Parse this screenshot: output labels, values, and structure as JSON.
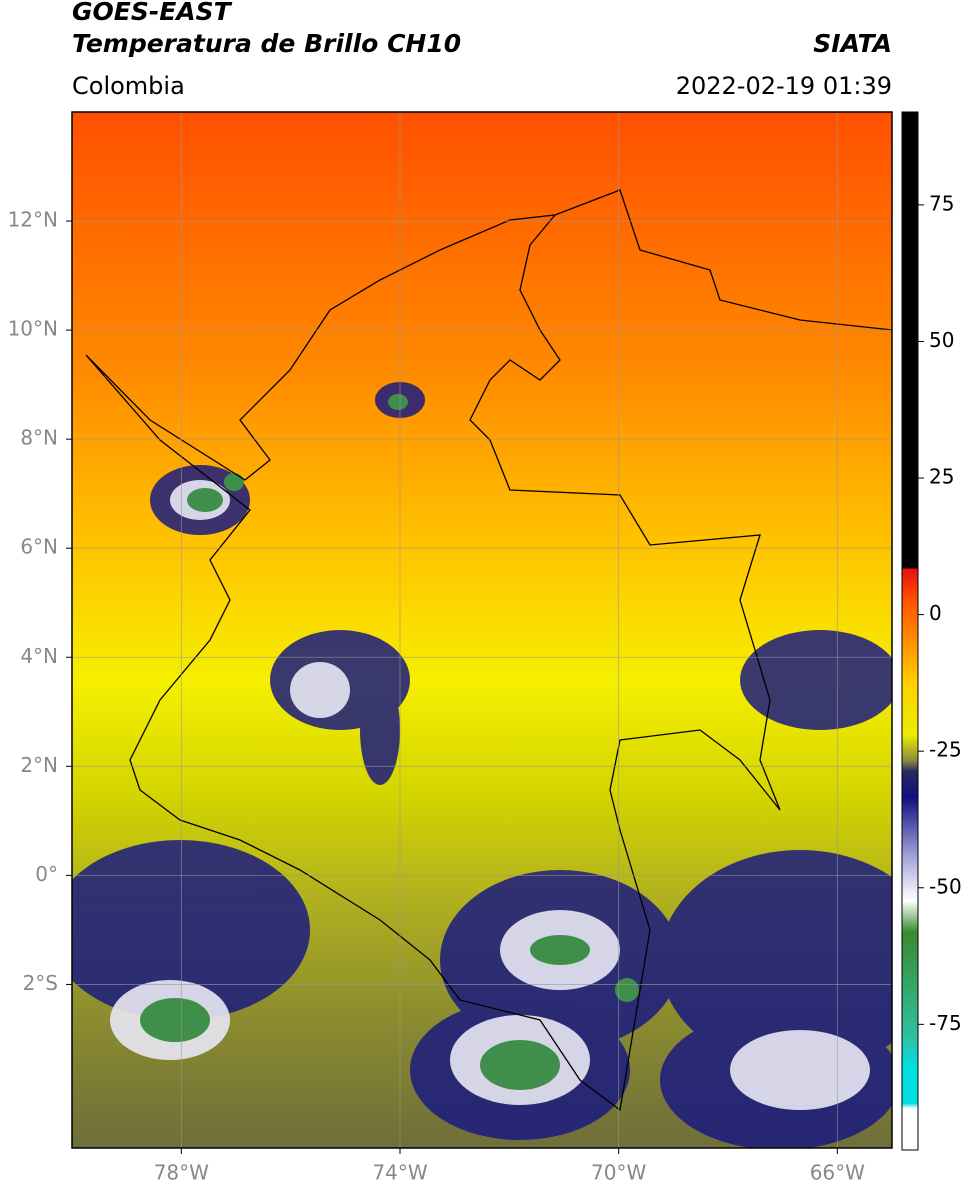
{
  "header": {
    "satellite": "GOES-EAST",
    "product": "Temperatura de Brillo CH10",
    "agency": "SIATA",
    "region": "Colombia",
    "datetime": "2022-02-19 01:39"
  },
  "map": {
    "xlim": [
      -80,
      -65
    ],
    "ylim": [
      -5,
      14
    ],
    "xticks": [
      {
        "value": -78,
        "label": "78°W"
      },
      {
        "value": -74,
        "label": "74°W"
      },
      {
        "value": -70,
        "label": "70°W"
      },
      {
        "value": -66,
        "label": "66°W"
      }
    ],
    "yticks": [
      {
        "value": 12,
        "label": "12°N"
      },
      {
        "value": 10,
        "label": "10°N"
      },
      {
        "value": 8,
        "label": "8°N"
      },
      {
        "value": 6,
        "label": "6°N"
      },
      {
        "value": 4,
        "label": "4°N"
      },
      {
        "value": 2,
        "label": "2°N"
      },
      {
        "value": 0,
        "label": "0°"
      },
      {
        "value": -2,
        "label": "2°S"
      }
    ]
  },
  "colorbar": {
    "lim": [
      -98,
      92
    ],
    "ticks": [
      75,
      50,
      25,
      0,
      -25,
      -50,
      -75
    ]
  }
}
